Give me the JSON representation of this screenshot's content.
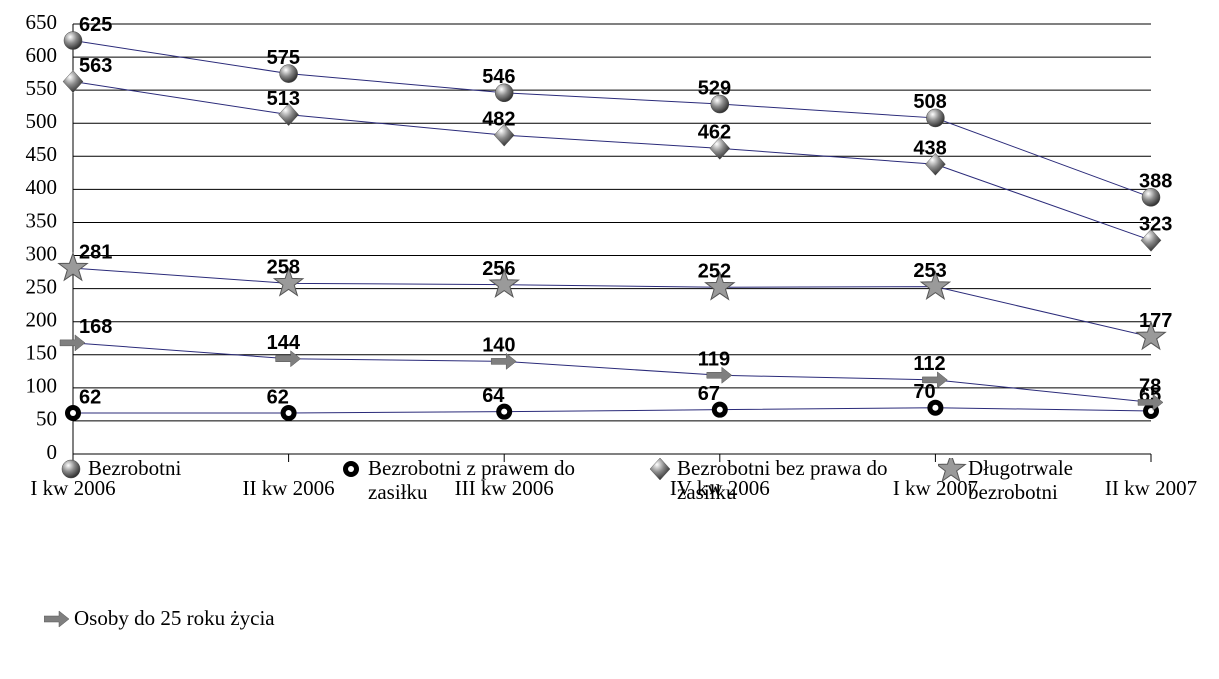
{
  "chart_data": {
    "type": "line",
    "categories": [
      "I kw 2006",
      "II kw 2006",
      "III kw 2006",
      "IV kw 2006",
      "I kw 2007",
      "II kw 2007"
    ],
    "series": [
      {
        "name": "Bezrobotni",
        "color": "#7f7f7f",
        "marker": "sphere",
        "values": [
          625,
          575,
          546,
          529,
          508,
          388
        ]
      },
      {
        "name": "Bezrobotni z prawem do zasiłku",
        "color": "#000000",
        "marker": "ring",
        "values": [
          62,
          62,
          64,
          67,
          70,
          65
        ]
      },
      {
        "name": "Bezrobotni bez prawa do zasiłku",
        "color": "#7f7f7f",
        "marker": "diamond",
        "values": [
          563,
          513,
          482,
          462,
          438,
          323
        ]
      },
      {
        "name": "Długotrwale bezrobotni",
        "color": "#9a9a9a",
        "marker": "star",
        "values": [
          281,
          258,
          256,
          252,
          253,
          177
        ]
      },
      {
        "name": "Osoby do 25 roku życia",
        "color": "#7f7f7f",
        "marker": "arrow",
        "values": [
          168,
          144,
          140,
          119,
          112,
          78
        ]
      }
    ],
    "line_color": "#2b2b7a",
    "ylim": [
      0,
      650
    ],
    "yticks": [
      0,
      50,
      100,
      150,
      200,
      250,
      300,
      350,
      400,
      450,
      500,
      550,
      600,
      650
    ],
    "grid": true
  }
}
